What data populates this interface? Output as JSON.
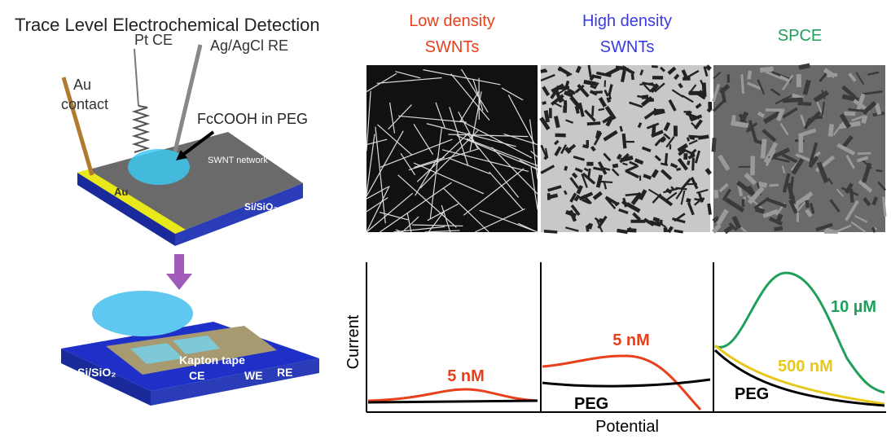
{
  "title": "Trace Level Electrochemical Detection",
  "device_top": {
    "au_contact": [
      "Au",
      "contact"
    ],
    "pt_ce": "Pt CE",
    "reference": "Ag/AgCl RE",
    "solution": "FcCOOH in PEG",
    "network": "SWNT network",
    "au_pad": "Au",
    "substrate": "Si/SiO₂"
  },
  "device_bottom": {
    "substrate": "Si/SiO₂",
    "tape": "Kapton tape",
    "electrodes": [
      "CE",
      "WE",
      "RE"
    ]
  },
  "panels": [
    {
      "label": [
        "Low density",
        "SWNTs"
      ]
    },
    {
      "label": [
        "High density",
        "SWNTs"
      ]
    },
    {
      "label": [
        "SPCE"
      ]
    }
  ],
  "plots": {
    "y_label": "Current",
    "x_label": "Potential",
    "annotations": [
      "5 nM",
      "5 nM",
      "PEG",
      "10 µM",
      "500 nM",
      "PEG"
    ]
  }
}
